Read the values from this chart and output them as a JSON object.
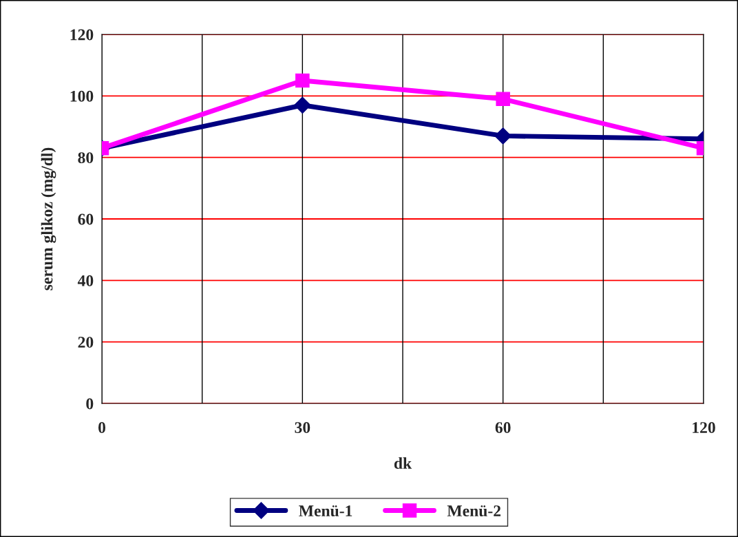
{
  "chart_data": {
    "type": "line",
    "xlabel": "dk",
    "ylabel": "serum glikoz (mg/dl)",
    "categories": [
      "0",
      "30",
      "60",
      "120"
    ],
    "series": [
      {
        "name": "Menü-1",
        "color": "#000080",
        "marker": "diamond",
        "values": [
          83,
          97,
          87,
          86
        ]
      },
      {
        "name": "Menü-2",
        "color": "#ff00ff",
        "marker": "square",
        "values": [
          83,
          105,
          99,
          83
        ]
      }
    ],
    "ylim": [
      0,
      120
    ],
    "yticks": [
      0,
      20,
      40,
      60,
      80,
      100,
      120
    ],
    "grid": true,
    "legend": "bottom",
    "line_style": "solid"
  }
}
